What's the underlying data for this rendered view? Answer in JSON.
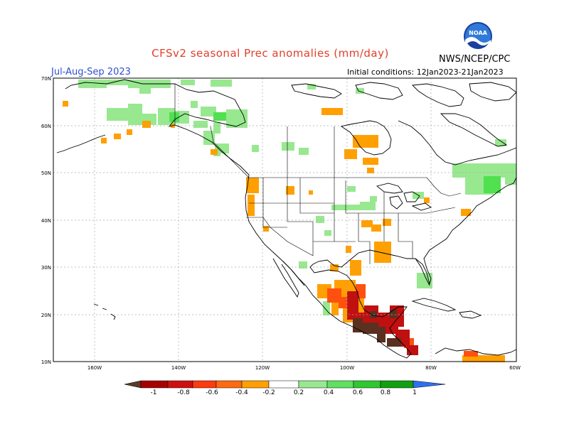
{
  "header": {
    "title": "CFSv2 seasonal Prec anomalies (mm/day)",
    "period": "Jul-Aug-Sep 2023",
    "initial_conditions": "Initial conditions: 12Jan2023-21Jan2023",
    "agency": "NWS/NCEP/CPC",
    "logo_text": "NOAA"
  },
  "axes": {
    "lat_labels": [
      "70N",
      "60N",
      "50N",
      "40N",
      "30N",
      "20N",
      "10N"
    ],
    "lon_labels": [
      "160W",
      "140W",
      "120W",
      "100W",
      "80W",
      "60W"
    ]
  },
  "colorbar": {
    "labels": [
      "-1",
      "-0.8",
      "-0.6",
      "-0.4",
      "-0.2",
      "0.2",
      "0.4",
      "0.6",
      "0.8",
      "1"
    ],
    "colors": [
      "#5a3a2a",
      "#a80000",
      "#d01010",
      "#ff3a10",
      "#ff8810",
      "#ffaa00",
      "#ffffff",
      "#98e890",
      "#50e050",
      "#30c030",
      "#10a010",
      "#3070f0"
    ]
  },
  "colors": {
    "land_outline": "#000000",
    "grid": "#999999",
    "wet_light": "#98e890",
    "wet_mid": "#50e050",
    "dry_light": "#ffa000",
    "dry_mid": "#ff5010",
    "dry_strong": "#c01010",
    "dry_extreme": "#5a3020"
  }
}
